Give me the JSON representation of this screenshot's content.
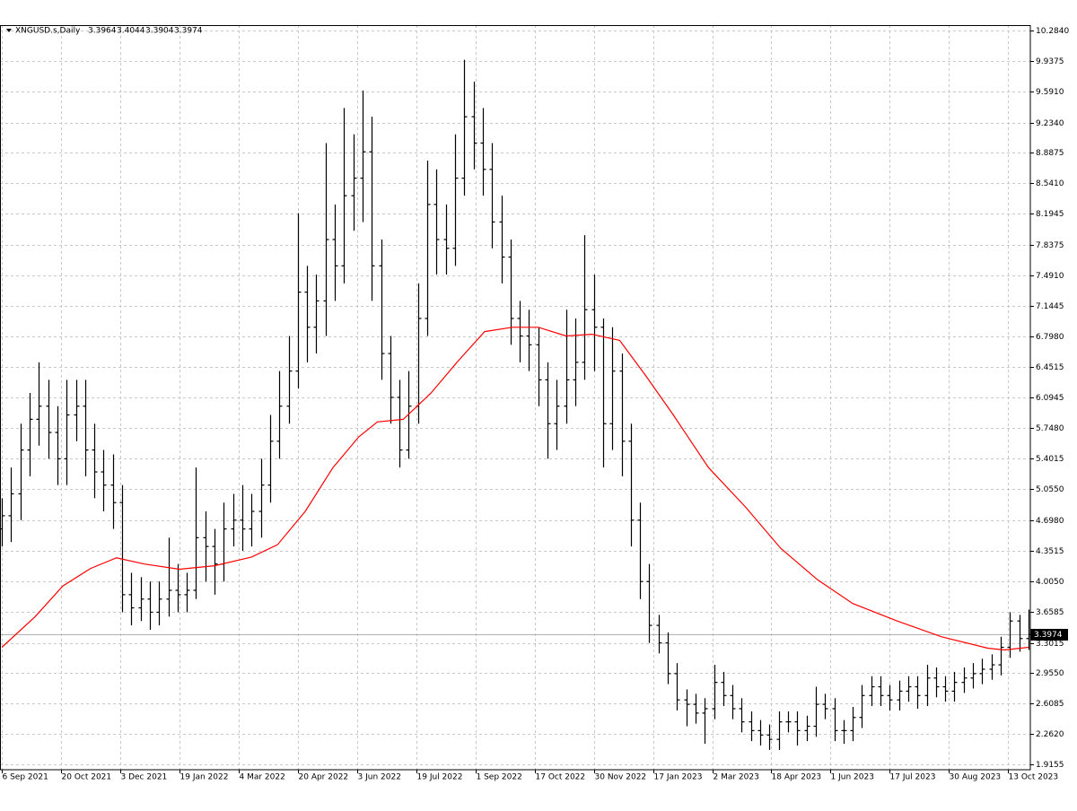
{
  "chart_data": {
    "type": "ohlc",
    "title": "XNGUSD.s,Daily",
    "last_bar": {
      "open": 3.3964,
      "high": 3.4044,
      "low": 3.3904,
      "close": 3.3974
    },
    "color": "#000000",
    "x": [
      0,
      5,
      10,
      15,
      20,
      25,
      30,
      35,
      40,
      45,
      50,
      55,
      60,
      65,
      70,
      75,
      80,
      85,
      90,
      95,
      100,
      105,
      110,
      115,
      120,
      125,
      130,
      135,
      140,
      145,
      150,
      155,
      160,
      165,
      170,
      175,
      180,
      185,
      190,
      195,
      200,
      205,
      210,
      215,
      220,
      225,
      230,
      235,
      240,
      245,
      250,
      255,
      260,
      265,
      270,
      275,
      280,
      285,
      290,
      295,
      300,
      305,
      310,
      315,
      320,
      325,
      330,
      335,
      340,
      345,
      350,
      355,
      360,
      365,
      370,
      375,
      380,
      385,
      390,
      395,
      400,
      405,
      410,
      415,
      420,
      425,
      430,
      435,
      440,
      445,
      450,
      455,
      460,
      465,
      470,
      475,
      480,
      485,
      490,
      495,
      500,
      505,
      510,
      515,
      520,
      525,
      530,
      535,
      540,
      545,
      550,
      555
    ],
    "open": [
      4.6,
      4.75,
      5.0,
      5.5,
      5.85,
      6.0,
      5.7,
      5.4,
      5.9,
      6.0,
      5.5,
      5.25,
      5.1,
      4.9,
      3.85,
      3.7,
      3.8,
      3.65,
      3.8,
      3.9,
      3.85,
      3.9,
      4.5,
      4.4,
      4.2,
      4.6,
      4.7,
      4.6,
      4.8,
      5.1,
      5.6,
      6.0,
      6.4,
      7.3,
      6.9,
      7.2,
      7.9,
      7.6,
      8.4,
      8.6,
      8.9,
      7.6,
      6.6,
      6.1,
      5.5,
      6.0,
      7.0,
      8.3,
      7.9,
      7.8,
      8.6,
      9.3,
      9.0,
      8.7,
      8.1,
      7.7,
      7.0,
      6.8,
      6.7,
      6.3,
      5.8,
      6.0,
      6.3,
      6.5,
      7.1,
      6.9,
      5.8,
      6.4,
      5.6,
      4.7,
      4.0,
      3.5,
      3.3,
      2.95,
      2.65,
      2.6,
      2.5,
      2.55,
      2.85,
      2.7,
      2.55,
      2.4,
      2.3,
      2.25,
      2.2,
      2.4,
      2.4,
      2.3,
      2.35,
      2.6,
      2.55,
      2.3,
      2.3,
      2.45,
      2.7,
      2.8,
      2.7,
      2.65,
      2.75,
      2.8,
      2.7,
      2.9,
      2.8,
      2.75,
      2.85,
      2.9,
      2.95,
      3.0,
      3.05,
      3.25,
      3.55,
      3.35
    ],
    "high": [
      4.95,
      5.3,
      5.8,
      6.15,
      6.5,
      6.3,
      6.0,
      6.3,
      6.3,
      6.3,
      5.8,
      5.5,
      5.45,
      5.1,
      4.1,
      4.05,
      4.0,
      4.0,
      4.5,
      4.2,
      4.1,
      5.3,
      4.8,
      4.6,
      4.9,
      5.0,
      5.1,
      5.0,
      5.4,
      5.9,
      6.4,
      6.8,
      8.2,
      7.6,
      7.5,
      9.0,
      8.3,
      9.4,
      9.1,
      9.6,
      9.3,
      7.9,
      6.8,
      6.3,
      6.4,
      7.4,
      8.8,
      8.7,
      8.3,
      9.1,
      9.95,
      9.7,
      9.4,
      9.0,
      8.4,
      7.9,
      7.2,
      7.1,
      6.9,
      6.5,
      6.3,
      7.1,
      7.0,
      7.95,
      7.5,
      7.0,
      6.9,
      6.6,
      5.8,
      4.9,
      4.2,
      3.62,
      3.42,
      3.07,
      2.77,
      2.72,
      2.67,
      3.05,
      2.97,
      2.82,
      2.67,
      2.52,
      2.42,
      2.37,
      2.52,
      2.52,
      2.52,
      2.47,
      2.8,
      2.72,
      2.67,
      2.42,
      2.57,
      2.82,
      2.92,
      2.92,
      2.82,
      2.87,
      2.92,
      2.92,
      3.05,
      3.02,
      2.92,
      2.97,
      3.02,
      3.07,
      3.12,
      3.17,
      3.37,
      3.65,
      3.62,
      3.68
    ],
    "low": [
      4.4,
      4.45,
      4.7,
      5.2,
      5.55,
      5.4,
      5.1,
      5.1,
      5.6,
      5.2,
      4.95,
      4.8,
      4.6,
      3.65,
      3.5,
      3.55,
      3.45,
      3.5,
      3.6,
      3.65,
      3.65,
      3.8,
      4.0,
      3.85,
      4.0,
      4.4,
      4.35,
      4.4,
      4.5,
      4.9,
      5.4,
      5.8,
      6.2,
      6.5,
      6.6,
      6.8,
      7.2,
      7.4,
      8.0,
      8.1,
      7.2,
      6.3,
      5.8,
      5.3,
      5.4,
      5.8,
      6.8,
      7.5,
      7.5,
      7.6,
      8.4,
      8.7,
      8.4,
      7.8,
      7.4,
      6.7,
      6.5,
      6.4,
      6.0,
      5.4,
      5.5,
      5.8,
      6.0,
      6.3,
      6.4,
      5.3,
      5.5,
      5.2,
      4.4,
      3.8,
      3.3,
      3.18,
      2.83,
      2.53,
      2.35,
      2.38,
      2.15,
      2.43,
      2.58,
      2.43,
      2.28,
      2.18,
      2.13,
      2.08,
      2.08,
      2.28,
      2.13,
      2.18,
      2.23,
      2.43,
      2.18,
      2.15,
      2.18,
      2.33,
      2.58,
      2.58,
      2.53,
      2.53,
      2.63,
      2.55,
      2.58,
      2.68,
      2.63,
      2.63,
      2.73,
      2.78,
      2.83,
      2.88,
      2.93,
      3.13,
      3.2,
      3.22
    ],
    "close": [
      4.75,
      5.0,
      5.5,
      5.85,
      6.0,
      5.7,
      5.4,
      5.9,
      6.0,
      5.5,
      5.25,
      5.1,
      4.9,
      3.85,
      3.7,
      3.8,
      3.65,
      3.8,
      3.9,
      3.85,
      3.9,
      4.5,
      4.4,
      4.2,
      4.6,
      4.7,
      4.6,
      4.8,
      5.1,
      5.6,
      6.0,
      6.4,
      7.3,
      6.9,
      7.2,
      7.9,
      7.6,
      8.4,
      8.6,
      8.9,
      7.6,
      6.6,
      6.1,
      5.5,
      6.0,
      7.0,
      8.3,
      7.9,
      7.8,
      8.6,
      9.3,
      9.0,
      8.7,
      8.1,
      7.7,
      7.0,
      6.8,
      6.7,
      6.3,
      5.8,
      6.0,
      6.3,
      6.5,
      7.1,
      6.9,
      5.8,
      6.4,
      5.6,
      4.7,
      4.0,
      3.5,
      3.3,
      2.95,
      2.65,
      2.6,
      2.5,
      2.55,
      2.85,
      2.7,
      2.55,
      2.4,
      2.3,
      2.25,
      2.2,
      2.4,
      2.4,
      2.3,
      2.35,
      2.6,
      2.55,
      2.3,
      2.3,
      2.45,
      2.7,
      2.8,
      2.7,
      2.65,
      2.75,
      2.8,
      2.7,
      2.9,
      2.8,
      2.75,
      2.85,
      2.9,
      2.95,
      3.0,
      3.05,
      3.25,
      3.55,
      3.35,
      3.3974
    ],
    "overlay": {
      "type": "line",
      "color": "#ff0000",
      "x": [
        0,
        18,
        33,
        48,
        62,
        77,
        96,
        115,
        135,
        149,
        164,
        179,
        193,
        203,
        217,
        232,
        246,
        261,
        276,
        290,
        305,
        319,
        334,
        348,
        363,
        382,
        402,
        421,
        441,
        460,
        484,
        508,
        533,
        542,
        555
      ],
      "values": [
        3.25,
        3.6,
        3.95,
        4.15,
        4.27,
        4.2,
        4.14,
        4.18,
        4.28,
        4.42,
        4.8,
        5.3,
        5.65,
        5.82,
        5.85,
        6.15,
        6.5,
        6.85,
        6.9,
        6.9,
        6.8,
        6.82,
        6.75,
        6.35,
        5.9,
        5.3,
        4.85,
        4.38,
        4.02,
        3.75,
        3.55,
        3.37,
        3.24,
        3.22,
        3.25
      ]
    },
    "xlim": [
      -1,
      556
    ],
    "ylim": [
      1.854,
      10.345
    ],
    "grid": true,
    "xticks": [
      {
        "value": 0,
        "label": "6 Sep 2021"
      },
      {
        "value": 32,
        "label": "20 Oct 2021"
      },
      {
        "value": 64,
        "label": "3 Dec 2021"
      },
      {
        "value": 96,
        "label": "19 Jan 2022"
      },
      {
        "value": 128,
        "label": "4 Mar 2022"
      },
      {
        "value": 160,
        "label": "20 Apr 2022"
      },
      {
        "value": 192,
        "label": "3 Jun 2022"
      },
      {
        "value": 224,
        "label": "19 Jul 2022"
      },
      {
        "value": 256,
        "label": "1 Sep 2022"
      },
      {
        "value": 288,
        "label": "17 Oct 2022"
      },
      {
        "value": 320,
        "label": "30 Nov 2022"
      },
      {
        "value": 352,
        "label": "17 Jan 2023"
      },
      {
        "value": 384,
        "label": "2 Mar 2023"
      },
      {
        "value": 416,
        "label": "18 Apr 2023"
      },
      {
        "value": 448,
        "label": "1 Jun 2023"
      },
      {
        "value": 480,
        "label": "17 Jul 2023"
      },
      {
        "value": 512,
        "label": "30 Aug 2023"
      },
      {
        "value": 544,
        "label": "13 Oct 2023"
      }
    ],
    "yticks": [
      {
        "value": 10.284,
        "label": "10.2840"
      },
      9.9375,
      {
        "value": 9.591,
        "label": "9.5910"
      },
      {
        "value": 9.234,
        "label": "9.2340"
      },
      8.8875,
      {
        "value": 8.541,
        "label": "8.5410"
      },
      8.1945,
      7.8375,
      {
        "value": 7.491,
        "label": "7.4910"
      },
      7.1445,
      {
        "value": 6.798,
        "label": "6.7980"
      },
      6.4515,
      6.0945,
      {
        "value": 5.748,
        "label": "5.7480"
      },
      5.4015,
      {
        "value": 5.055,
        "label": "5.0550"
      },
      {
        "value": 4.698,
        "label": "4.6980"
      },
      4.3515,
      {
        "value": 4.005,
        "label": "4.0050"
      },
      3.6585,
      3.3015,
      {
        "value": 2.955,
        "label": "2.9550"
      },
      2.6085,
      {
        "value": 2.262,
        "label": "2.2620"
      },
      1.9155
    ]
  }
}
